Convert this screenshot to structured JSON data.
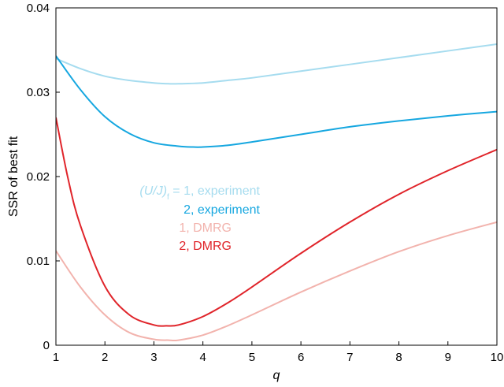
{
  "chart_data": {
    "type": "line",
    "title": "",
    "xlabel": "q",
    "ylabel": "SSR of best fit",
    "xlim": [
      1,
      10
    ],
    "ylim": [
      0,
      0.04
    ],
    "x_ticks": [
      1,
      2,
      3,
      4,
      5,
      6,
      7,
      8,
      9,
      10
    ],
    "x_tick_labels": [
      "1",
      "2",
      "3",
      "4",
      "5",
      "6",
      "7",
      "8",
      "9",
      "10"
    ],
    "y_ticks": [
      0,
      0.01,
      0.02,
      0.03,
      0.04
    ],
    "y_tick_labels": [
      "0",
      "0.01",
      "0.02",
      "0.03",
      "0.04"
    ],
    "grid": false,
    "legend_placement": "center-left",
    "legend_prefix_symbol": "(U/J)",
    "legend_prefix_subscript": "f",
    "legend_prefix_equals": " = ",
    "series": [
      {
        "name": "1, experiment",
        "color": "#a6dcef",
        "x": [
          1,
          1.5,
          2,
          2.5,
          3,
          3.3,
          3.5,
          4,
          4.5,
          5,
          6,
          7,
          8,
          9,
          10
        ],
        "y": [
          0.034,
          0.0328,
          0.0319,
          0.0314,
          0.0311,
          0.031,
          0.031,
          0.0311,
          0.0314,
          0.0317,
          0.0325,
          0.0333,
          0.0341,
          0.0349,
          0.0357
        ]
      },
      {
        "name": "2, experiment",
        "color": "#16a7e0",
        "x": [
          1,
          1.5,
          2,
          2.5,
          3,
          3.5,
          3.8,
          4,
          4.5,
          5,
          6,
          7,
          8,
          9,
          10
        ],
        "y": [
          0.0343,
          0.0303,
          0.0271,
          0.0251,
          0.024,
          0.0236,
          0.0235,
          0.0235,
          0.0237,
          0.0241,
          0.025,
          0.0259,
          0.0266,
          0.0272,
          0.0277
        ]
      },
      {
        "name": "1, DMRG",
        "color": "#f2b3ad",
        "x": [
          1,
          1.5,
          2,
          2.5,
          3,
          3.3,
          3.5,
          4,
          4.5,
          5,
          6,
          7,
          8,
          9,
          10
        ],
        "y": [
          0.0112,
          0.0069,
          0.0036,
          0.0015,
          0.0007,
          0.0006,
          0.0006,
          0.0012,
          0.0023,
          0.0036,
          0.0063,
          0.0088,
          0.0111,
          0.013,
          0.0146
        ]
      },
      {
        "name": "2, DMRG",
        "color": "#e0242a",
        "x": [
          1,
          1.25,
          1.5,
          2,
          2.5,
          3,
          3.25,
          3.5,
          4,
          4.5,
          5,
          6,
          7,
          8,
          9,
          10
        ],
        "y": [
          0.027,
          0.0197,
          0.0142,
          0.007,
          0.0036,
          0.0024,
          0.0023,
          0.0024,
          0.0034,
          0.005,
          0.0069,
          0.0109,
          0.0146,
          0.0179,
          0.0207,
          0.0232
        ]
      }
    ]
  }
}
